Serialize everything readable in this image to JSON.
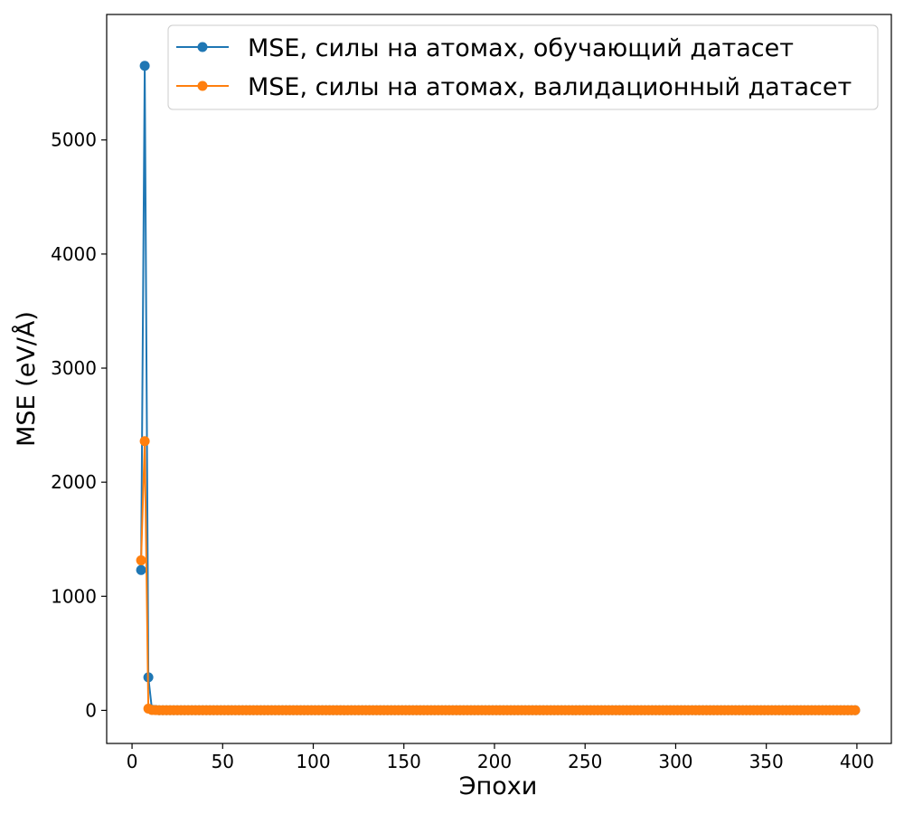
{
  "chart_data": {
    "type": "line",
    "xlabel": "Эпохи",
    "ylabel": "MSE (eV/Å)",
    "xlim": [
      -14,
      419
    ],
    "ylim": [
      -290,
      6100
    ],
    "xticks": [
      0,
      50,
      100,
      150,
      200,
      250,
      300,
      350,
      400
    ],
    "yticks": [
      0,
      1000,
      2000,
      3000,
      4000,
      5000
    ],
    "legend_position": "top-right",
    "grid": false,
    "marker": "circle",
    "series": [
      {
        "name": "MSE, силы на атомах, обучающий датасет",
        "color": "#1f77b4",
        "head": [
          [
            5,
            1230
          ],
          [
            7,
            5650
          ],
          [
            9,
            290
          ],
          [
            11,
            5
          ],
          [
            13,
            3
          ]
        ],
        "tail": {
          "start": 15,
          "end": 399,
          "step": 2,
          "value": 1
        }
      },
      {
        "name": "MSE, силы на атомах, валидационный датасет",
        "color": "#ff7f0e",
        "head": [
          [
            5,
            1315
          ],
          [
            7,
            2360
          ],
          [
            9,
            15
          ],
          [
            11,
            3
          ],
          [
            13,
            2
          ]
        ],
        "tail": {
          "start": 15,
          "end": 399,
          "step": 2,
          "value": 1
        }
      }
    ]
  }
}
